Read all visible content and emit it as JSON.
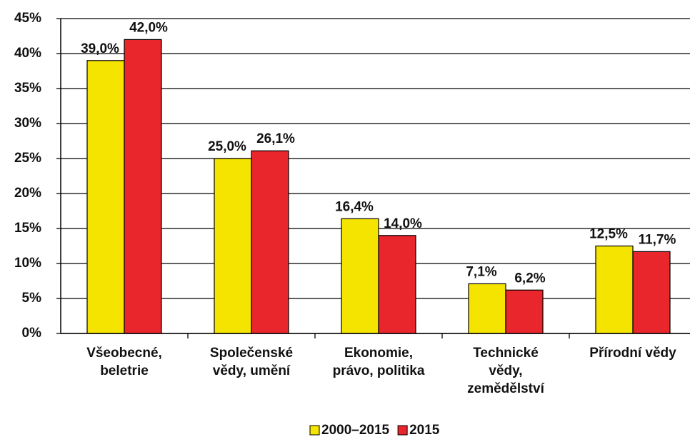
{
  "chart_data": {
    "type": "bar",
    "categories": [
      "Všeobecné,\nbeletrie",
      "Společenské\nvědy, umění",
      "Ekonomie,\nprávo, politika",
      "Technické\nvědy,\nzemědělství",
      "Přírodní vědy"
    ],
    "series": [
      {
        "name": "2000–2015",
        "color": "#f5e400",
        "values": [
          39.0,
          25.0,
          16.4,
          7.1,
          12.5
        ],
        "value_labels": [
          "39,0%",
          "25,0%",
          "16,4%",
          "7,1%",
          "12,5%"
        ]
      },
      {
        "name": "2015",
        "color": "#e8262b",
        "values": [
          42.0,
          26.1,
          14.0,
          6.2,
          11.7
        ],
        "value_labels": [
          "42,0%",
          "26,1%",
          "14,0%",
          "6,2%",
          "11,7%"
        ]
      }
    ],
    "ylim": [
      0,
      45
    ],
    "yticks": [
      {
        "value": 0,
        "label": "0%"
      },
      {
        "value": 5,
        "label": "5%"
      },
      {
        "value": 10,
        "label": "10%"
      },
      {
        "value": 15,
        "label": "15%"
      },
      {
        "value": 20,
        "label": "20%"
      },
      {
        "value": 25,
        "label": "25%"
      },
      {
        "value": 30,
        "label": "30%"
      },
      {
        "value": 35,
        "label": "35%"
      },
      {
        "value": 40,
        "label": "40%"
      },
      {
        "value": 45,
        "label": "45%"
      }
    ],
    "grid": true,
    "legend": "bottom"
  }
}
